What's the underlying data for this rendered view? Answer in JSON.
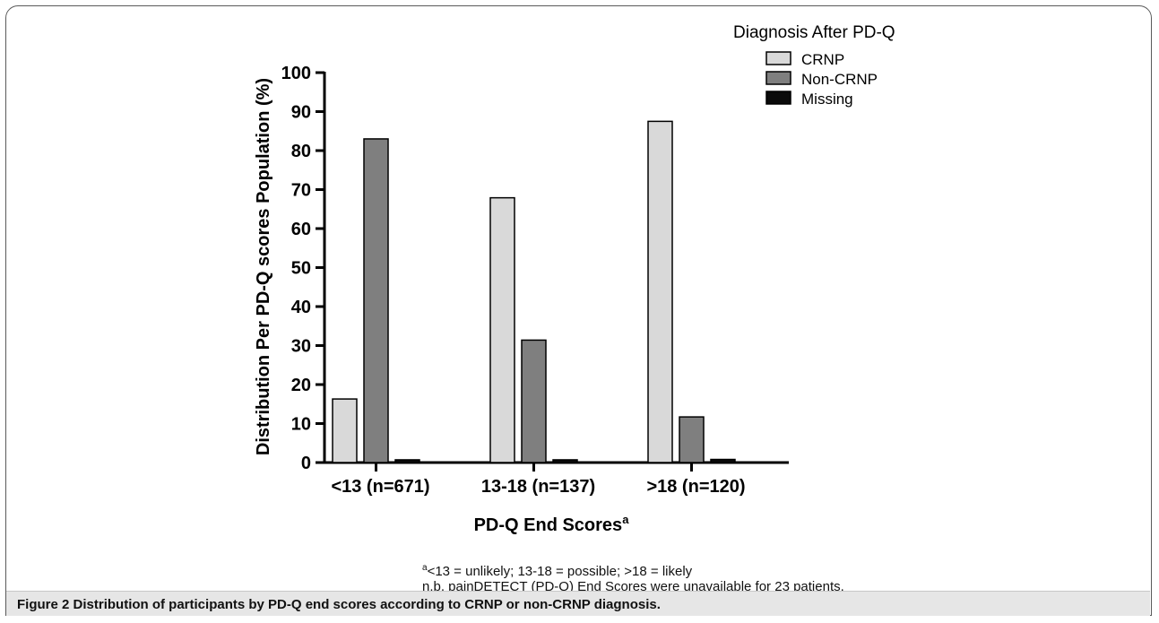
{
  "chart_data": {
    "type": "bar",
    "categories": [
      "<13 (n=671)",
      "13-18 (n=137)",
      ">18 (n=120)"
    ],
    "series": [
      {
        "name": "CRNP",
        "values": [
          16.3,
          67.9,
          87.5
        ],
        "color": "#d9d9d9"
      },
      {
        "name": "Non-CRNP",
        "values": [
          83.0,
          31.4,
          11.7
        ],
        "color": "#7f7f7f"
      },
      {
        "name": "Missing",
        "values": [
          0.7,
          0.7,
          0.8
        ],
        "color": "#0a0a0a"
      }
    ],
    "xlabel": "PD-Q End Scores",
    "xlabel_sup": "a",
    "ylabel": "Distribution Per PD-Q scores Population (%)",
    "ylim": [
      0,
      100
    ],
    "yticks": [
      0,
      10,
      20,
      30,
      40,
      50,
      60,
      70,
      80,
      90,
      100
    ],
    "legend_title": "Diagnosis After PD-Q",
    "legend_position": "top-right",
    "grid": false
  },
  "footnotes": {
    "line1_sup": "a",
    "line1": "<13 = unlikely; 13-18 = possible; >18 = likely",
    "line2": "n.b. painDETECT (PD-Q) End Scores were unavailable for 23 patients."
  },
  "caption": {
    "label": "Figure 2",
    "text": " Distribution of participants by PD-Q end scores according to CRNP or non-CRNP diagnosis."
  }
}
